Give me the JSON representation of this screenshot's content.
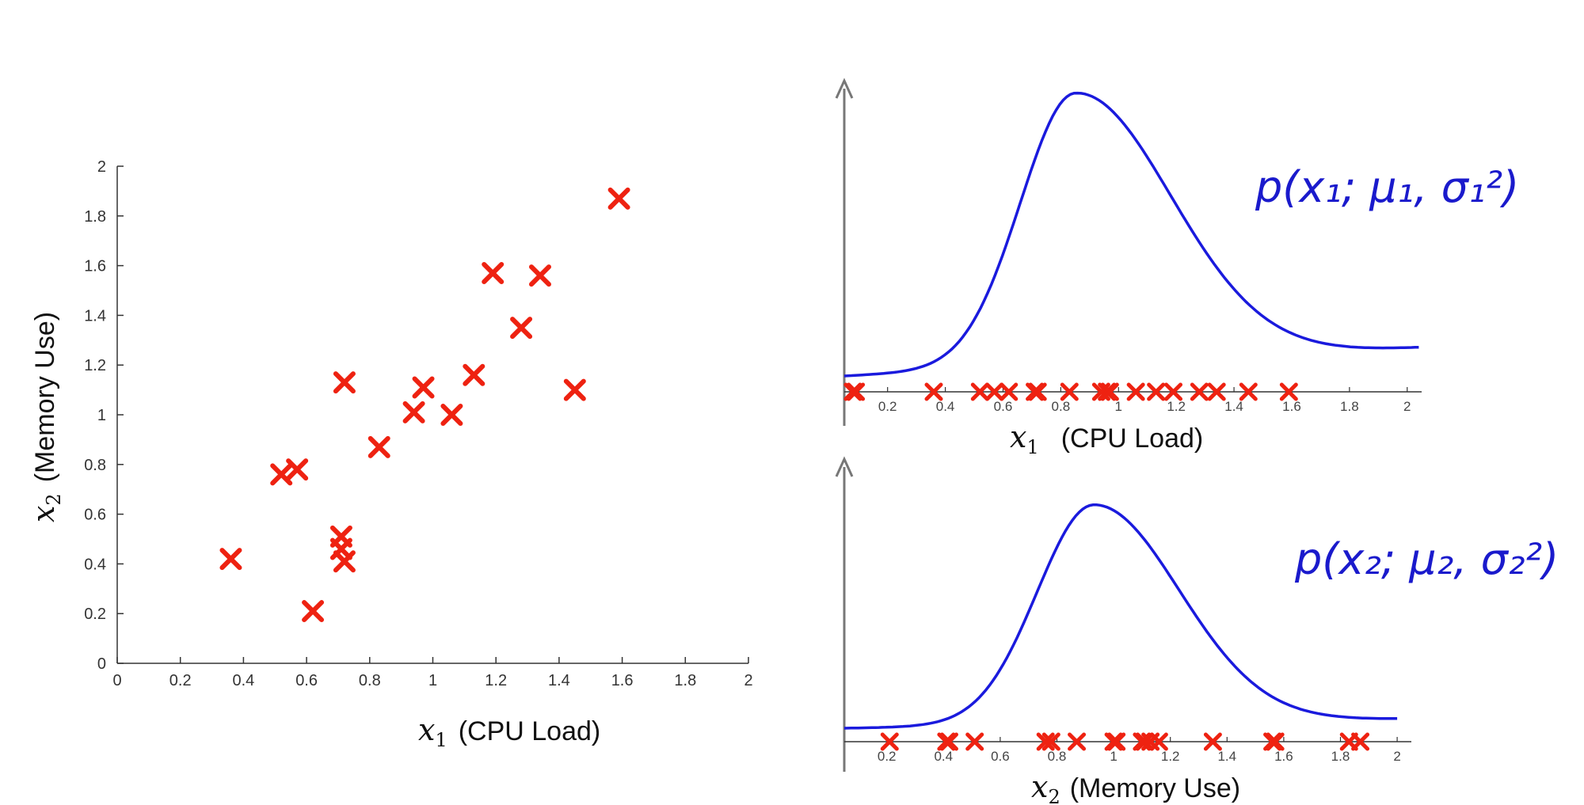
{
  "chart_data": [
    {
      "type": "scatter",
      "xlabel_var": "x",
      "xlabel_sub": "1",
      "xlabel_text": "(CPU Load)",
      "ylabel_var": "x",
      "ylabel_sub": "2",
      "ylabel_text": "(Memory Use)",
      "xlim": [
        0,
        2
      ],
      "ylim": [
        0,
        2
      ],
      "xticks": [
        "0",
        "0.2",
        "0.4",
        "0.6",
        "0.8",
        "1",
        "1.2",
        "1.4",
        "1.6",
        "1.8",
        "2"
      ],
      "yticks": [
        "0",
        "0.2",
        "0.4",
        "0.6",
        "0.8",
        "1",
        "1.2",
        "1.4",
        "1.6",
        "1.8",
        "2"
      ],
      "marker": "x",
      "color": "#ee2211",
      "points": [
        [
          0.36,
          0.42
        ],
        [
          0.52,
          0.76
        ],
        [
          0.57,
          0.78
        ],
        [
          0.62,
          0.21
        ],
        [
          0.71,
          0.51
        ],
        [
          0.71,
          0.46
        ],
        [
          0.72,
          0.41
        ],
        [
          0.72,
          1.13
        ],
        [
          0.83,
          0.87
        ],
        [
          0.94,
          1.01
        ],
        [
          0.97,
          1.11
        ],
        [
          1.06,
          1.0
        ],
        [
          1.13,
          1.16
        ],
        [
          1.19,
          1.57
        ],
        [
          1.28,
          1.35
        ],
        [
          1.34,
          1.56
        ],
        [
          1.45,
          1.1
        ],
        [
          1.59,
          1.87
        ]
      ]
    },
    {
      "type": "line",
      "xlabel_var": "x",
      "xlabel_sub": "1",
      "xlabel_text": "(CPU Load)",
      "xlim": [
        0.05,
        2.05
      ],
      "xticks": [
        "0.2",
        "0.4",
        "0.6",
        "0.8",
        "1",
        "1.2",
        "1.4",
        "1.6",
        "1.8",
        "2"
      ],
      "color": "#1a1add",
      "marker_color": "#ee2211",
      "annotation": "p(x₁; μ₁, σ₁²)",
      "curve": {
        "mean": 0.85,
        "sigma_left": 0.19,
        "sigma_right": 0.33,
        "base": 0.05,
        "peak": 1.0
      },
      "marks": [
        0.08,
        0.09,
        0.36,
        0.52,
        0.57,
        0.62,
        0.71,
        0.72,
        0.83,
        0.94,
        0.96,
        0.97,
        1.06,
        1.13,
        1.19,
        1.28,
        1.34,
        1.45,
        1.59
      ]
    },
    {
      "type": "line",
      "xlabel_var": "x",
      "xlabel_sub": "2",
      "xlabel_text": "(Memory Use)",
      "xlim": [
        0.05,
        2.05
      ],
      "xticks": [
        "0.2",
        "0.4",
        "0.6",
        "0.8",
        "1",
        "1.2",
        "1.4",
        "1.6",
        "1.8",
        "2"
      ],
      "color": "#1a1add",
      "marker_color": "#ee2211",
      "annotation": "p(x₂; μ₂, σ₂²)",
      "curve": {
        "mean": 0.93,
        "sigma_left": 0.2,
        "sigma_right": 0.3,
        "base": 0.03,
        "peak": 1.0
      },
      "marks": [
        0.21,
        0.41,
        0.42,
        0.51,
        0.76,
        0.78,
        0.87,
        1.0,
        1.01,
        1.1,
        1.11,
        1.13,
        1.16,
        1.35,
        1.56,
        1.57,
        1.83,
        1.87
      ]
    }
  ]
}
